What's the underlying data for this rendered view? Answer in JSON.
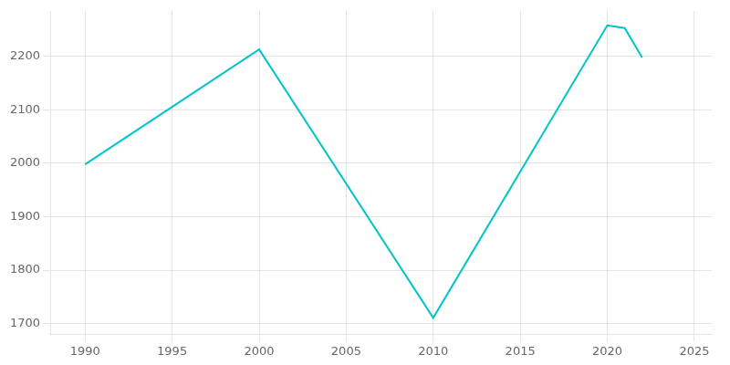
{
  "chart_data": {
    "type": "line",
    "x": [
      1990,
      2000,
      2010,
      2020,
      2021,
      2022
    ],
    "values": [
      1998,
      2213,
      1711,
      2258,
      2253,
      2198
    ],
    "color": "#00C5C8",
    "xlim": [
      1988,
      2026
    ],
    "ylim": [
      1680,
      2285
    ],
    "xticks": [
      1990,
      1995,
      2000,
      2005,
      2010,
      2015,
      2020,
      2025
    ],
    "yticks": [
      1700,
      1800,
      1900,
      2000,
      2100,
      2200
    ],
    "grid": true
  }
}
